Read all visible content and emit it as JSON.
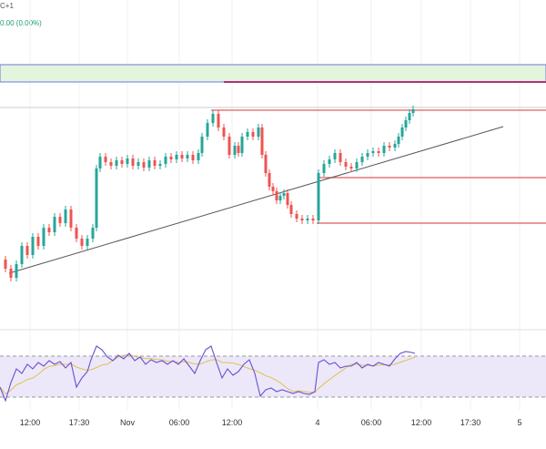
{
  "header": {
    "symbol_fragment": "C+1",
    "change_text": "0.00 (0.00%)"
  },
  "time_axis": {
    "ticks": [
      "12:00",
      "17:30",
      "Nov",
      "06:00",
      "12:00",
      "4",
      "06:00",
      "12:00",
      "17:30",
      "5"
    ]
  },
  "colors": {
    "up": "#26a69a",
    "down": "#ef5350",
    "trendline": "#555555",
    "level_line": "#e05a5a",
    "zone_fill": "#e3f5dc",
    "zone_border": "#6b78e0",
    "magenta_line": "#b0307a",
    "rsi_line": "#6a4fd0",
    "rsi_ma": "#e0c050",
    "rsi_band": "#ece8fa"
  }
}
